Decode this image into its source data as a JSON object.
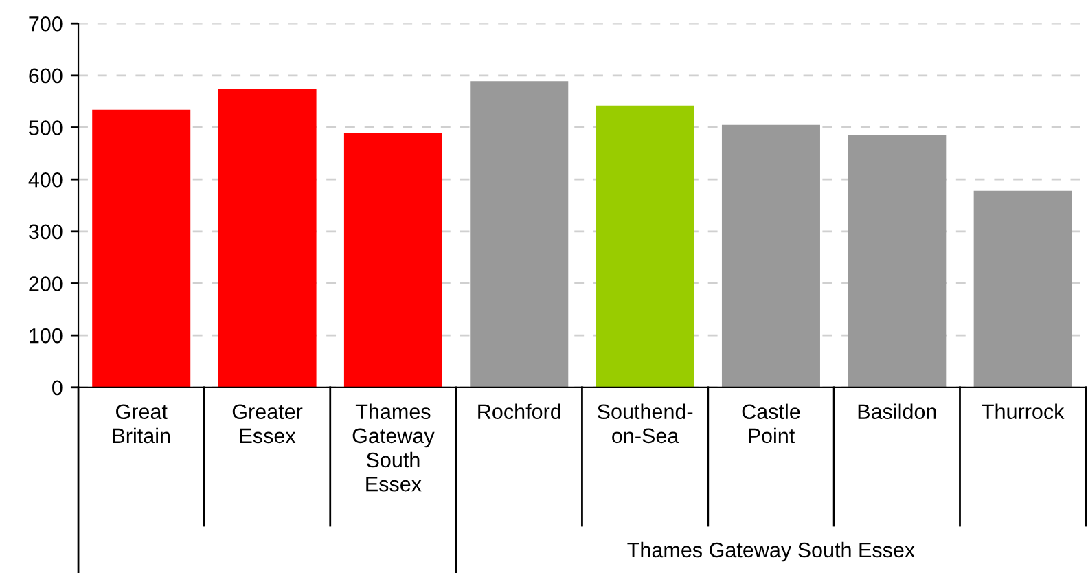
{
  "chart_data": {
    "type": "bar",
    "categories": [
      "Great\nBritain",
      "Greater\nEssex",
      "Thames\nGateway\nSouth\nEssex",
      "Rochford",
      "Southend-\non-Sea",
      "Castle\nPoint",
      "Basildon",
      "Thurrock"
    ],
    "values": [
      534,
      574,
      489,
      589,
      542,
      505,
      486,
      378
    ],
    "colors": [
      "#ff0000",
      "#ff0000",
      "#ff0000",
      "#999999",
      "#99cc00",
      "#999999",
      "#999999",
      "#999999"
    ],
    "ylim": [
      0,
      700
    ],
    "yticks": [
      0,
      100,
      200,
      300,
      400,
      500,
      600,
      700
    ],
    "grid": "y",
    "annotations": [
      "Thames Gateway South Essex"
    ]
  }
}
